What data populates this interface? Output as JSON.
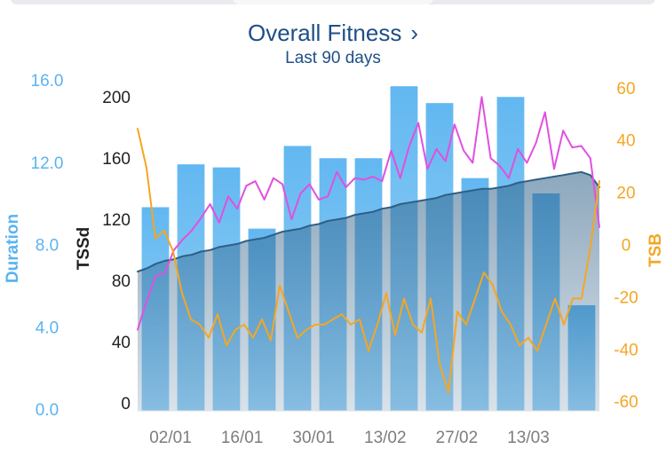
{
  "header": {
    "title": "Overall Fitness",
    "chevron_icon": "chevron-right-icon",
    "subtitle": "Last 90 days"
  },
  "colors": {
    "duration": "#5ab4f0",
    "tss_axis": "#222222",
    "tsb": "#f5a623",
    "fitness_line": "#2e5f86",
    "fatigue_line": "#e050e0",
    "title": "#1f4f86",
    "date_labels": "#7d7d7d"
  },
  "chart_data": {
    "type": "bar+line",
    "title": "Overall Fitness",
    "subtitle": "Last 90 days",
    "x_tick_labels": [
      "02/01",
      "16/01",
      "30/01",
      "13/02",
      "27/02",
      "13/03"
    ],
    "axes": {
      "duration": {
        "label": "Duration",
        "side": "left",
        "ticks": [
          "16.0",
          "12.0",
          "8.0",
          "4.0",
          "0.0"
        ],
        "range": [
          0,
          16
        ]
      },
      "tss": {
        "label": "TSSd",
        "side": "left",
        "ticks": [
          "200",
          "160",
          "120",
          "80",
          "40",
          "0"
        ],
        "range": [
          0,
          215
        ]
      },
      "tsb": {
        "label": "TSB",
        "side": "right",
        "ticks": [
          "60",
          "40",
          "20",
          "0",
          "-20",
          "-40",
          "-60"
        ],
        "range": [
          -63,
          63
        ]
      }
    },
    "bars": {
      "name": "Duration",
      "axis": "tss",
      "values": [
        133,
        161,
        159,
        119,
        173,
        165,
        165,
        212,
        201,
        152,
        205,
        142,
        69
      ]
    },
    "series": [
      {
        "name": "Fitness",
        "axis": "tss",
        "style": "area+line",
        "values": [
          91,
          93,
          96,
          98,
          99,
          101,
          102,
          104,
          105,
          107,
          108,
          109,
          111,
          112,
          113,
          115,
          117,
          118,
          119,
          121,
          122,
          124,
          125,
          126,
          128,
          129,
          130,
          132,
          133,
          135,
          136,
          137,
          138,
          139,
          141,
          142,
          143,
          144,
          145,
          145,
          146,
          147,
          149,
          150,
          151,
          152,
          153,
          154,
          155,
          156,
          154,
          146
        ]
      },
      {
        "name": "Fatigue",
        "axis": "tss",
        "style": "line",
        "values": [
          53,
          72,
          88,
          90,
          105,
          112,
          118,
          126,
          135,
          123,
          140,
          132,
          147,
          150,
          138,
          152,
          148,
          125,
          142,
          148,
          138,
          140,
          156,
          146,
          152,
          151,
          153,
          150,
          170,
          152,
          173,
          188,
          158,
          171,
          163,
          187,
          170,
          162,
          205,
          165,
          160,
          152,
          171,
          162,
          175,
          195,
          158,
          183,
          172,
          173,
          165,
          120
        ]
      },
      {
        "name": "TSB",
        "axis": "tsb",
        "style": "line",
        "values": [
          45,
          30,
          3,
          6,
          -2,
          -18,
          -28,
          -30,
          -35,
          -26,
          -38,
          -32,
          -30,
          -35,
          -28,
          -36,
          -15,
          -25,
          -35,
          -32,
          -30,
          -30,
          -28,
          -26,
          -30,
          -28,
          -40,
          -30,
          -18,
          -34,
          -20,
          -30,
          -33,
          -20,
          -45,
          -56,
          -25,
          -30,
          -20,
          -10,
          -15,
          -25,
          -30,
          -38,
          -35,
          -40,
          -30,
          -20,
          -30,
          -20,
          -20,
          0,
          25
        ]
      }
    ]
  }
}
